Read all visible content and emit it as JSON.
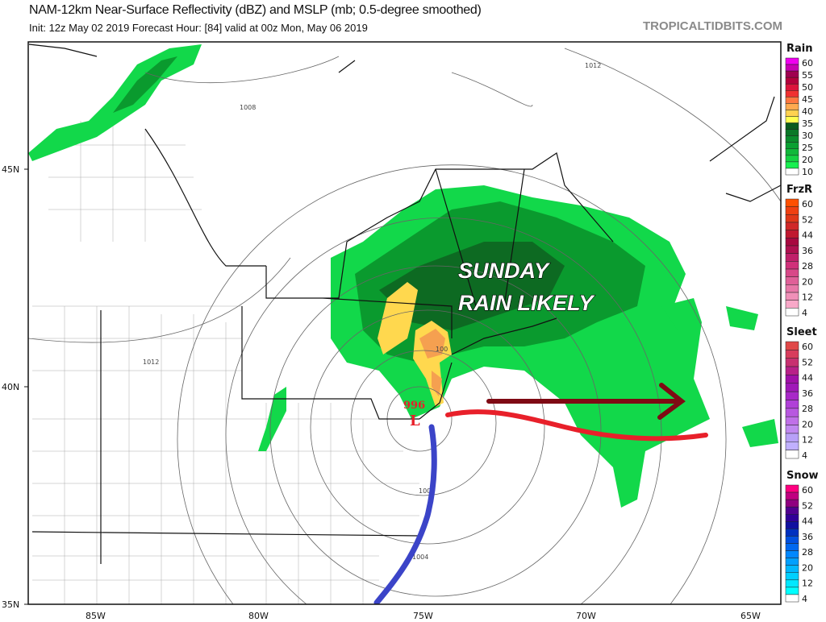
{
  "header": {
    "title": "NAM-12km Near-Surface Reflectivity (dBZ) and MSLP (mb; 0.5-degree smoothed)",
    "subtitle": "Init: 12z May 02 2019   Forecast Hour: [84]   valid at 00z Mon, May 06 2019",
    "brand": "TROPICALTIDBITS.COM"
  },
  "map": {
    "lat_labels": [
      "45N",
      "40N",
      "35N"
    ],
    "lon_labels": [
      "85W",
      "80W",
      "75W",
      "70W",
      "65W"
    ],
    "isobar_labels": [
      "1012",
      "1008",
      "1012",
      "1000",
      "1004",
      "100"
    ],
    "low_center": {
      "pressure": "996",
      "symbol": "L",
      "color": "#e8202a"
    },
    "annotation": {
      "line1": "SUNDAY",
      "line2": "RAIN LIKELY"
    },
    "warm_front_color": "#e8202a",
    "cold_front_color": "#3b44c8",
    "motion_arrow_color": "#7f0a14",
    "colors": {
      "rain_light": "#12d84a",
      "rain_mid": "#0a9a2e",
      "rain_dark": "#0d6a22",
      "rain_yellow": "#ffd84e",
      "rain_orange": "#f5a050"
    }
  },
  "legend": [
    {
      "title": "Rain",
      "labels": [
        "60",
        "55",
        "50",
        "45",
        "40",
        "35",
        "30",
        "25",
        "20",
        "10"
      ],
      "colors": [
        "#f000f0",
        "#c800b4",
        "#a00050",
        "#b4003c",
        "#dc143c",
        "#f03030",
        "#ff7840",
        "#ffaa50",
        "#ffd250",
        "#ffff50",
        "#0a5a1e",
        "#0a7828",
        "#0a8c2d",
        "#0aa032",
        "#10b83a",
        "#14d242",
        "#18f050",
        "#ffffff"
      ]
    },
    {
      "title": "FrzR",
      "labels": [
        "60",
        "52",
        "44",
        "36",
        "28",
        "20",
        "12",
        "4"
      ],
      "colors": [
        "#ff5000",
        "#f04010",
        "#e03818",
        "#d02828",
        "#c01830",
        "#a80840",
        "#b01050",
        "#c0206a",
        "#d0307a",
        "#d84888",
        "#e06098",
        "#e878a8",
        "#f090b8",
        "#f8a8c8",
        "#ffffff"
      ]
    },
    {
      "title": "Sleet",
      "labels": [
        "60",
        "52",
        "44",
        "36",
        "28",
        "20",
        "12",
        "4"
      ],
      "colors": [
        "#e04848",
        "#d83c5c",
        "#c83070",
        "#b82088",
        "#a010a8",
        "#a018b8",
        "#a828c8",
        "#b040d8",
        "#b858e0",
        "#c070e8",
        "#c088f0",
        "#b8a0f8",
        "#c0b0ff",
        "#ffffff"
      ]
    },
    {
      "title": "Snow",
      "labels": [
        "60",
        "52",
        "44",
        "36",
        "28",
        "20",
        "12",
        "4"
      ],
      "colors": [
        "#ff0080",
        "#c00080",
        "#900080",
        "#500090",
        "#300098",
        "#1010a0",
        "#0030c0",
        "#0050e0",
        "#0068f0",
        "#0088ff",
        "#00a0ff",
        "#00b8ff",
        "#00d0ff",
        "#00e8ff",
        "#00ffff",
        "#ffffff"
      ]
    }
  ]
}
